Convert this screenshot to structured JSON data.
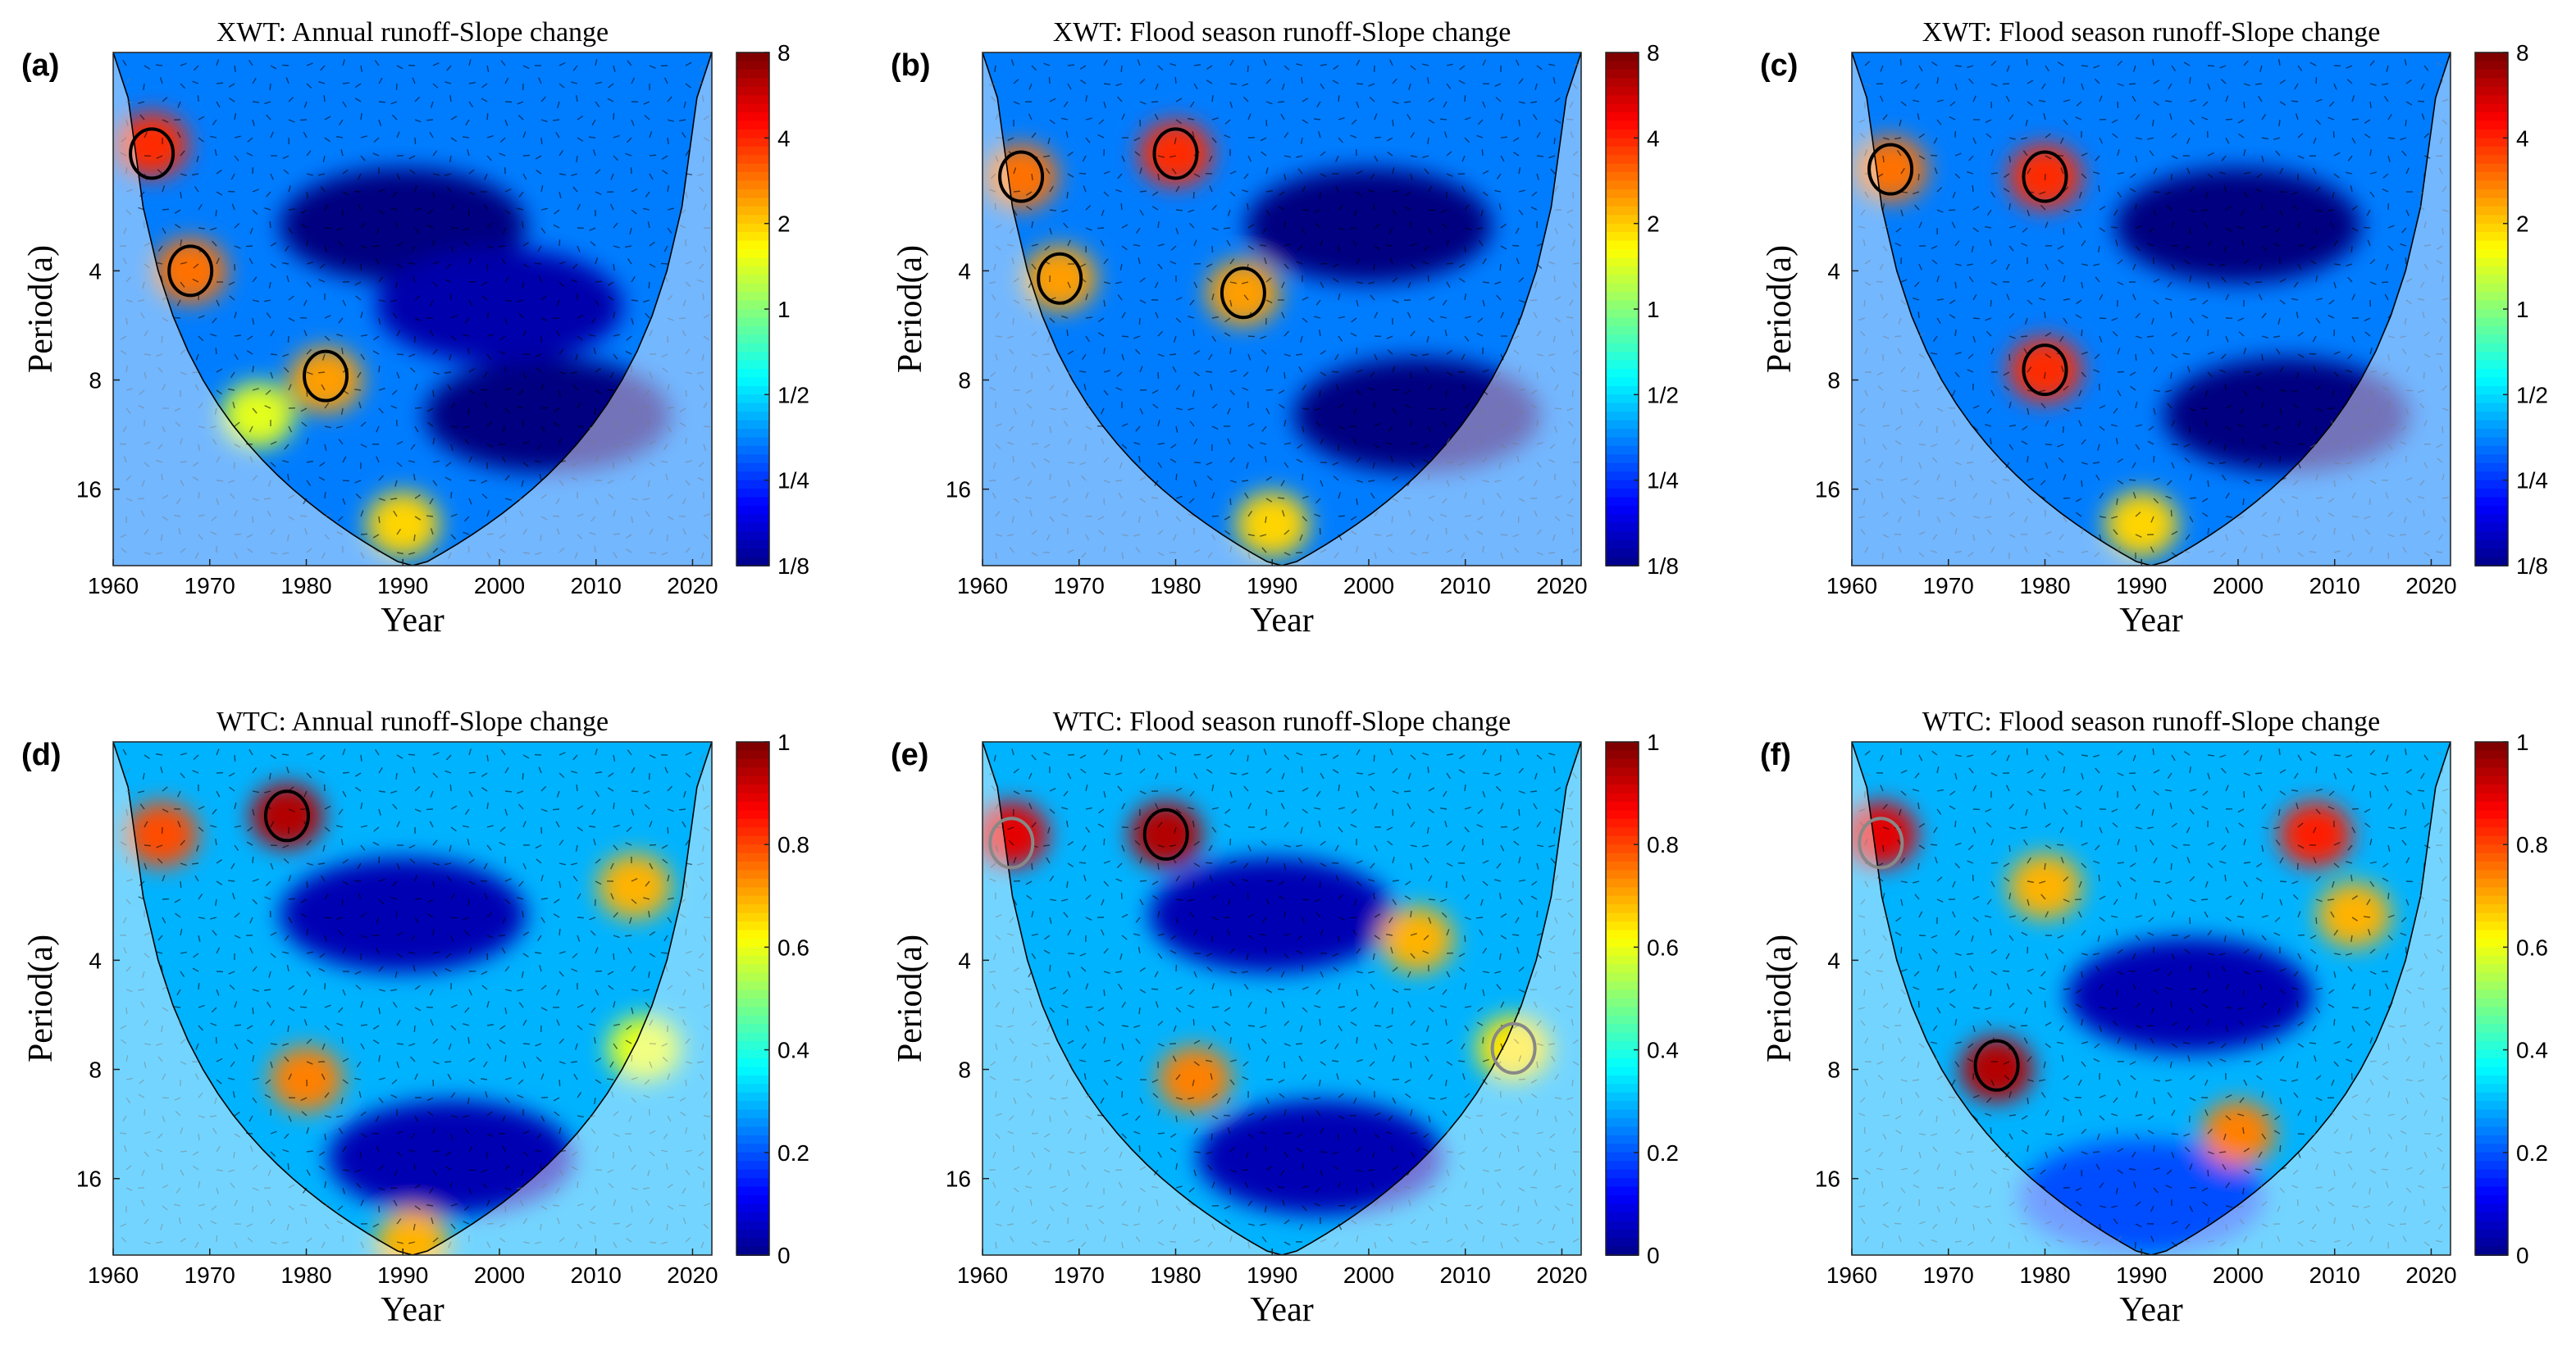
{
  "figure": {
    "row_labels": [
      "XWT",
      "WTC"
    ],
    "x_axis": {
      "label": "Year",
      "ticks": [
        1960,
        1970,
        1980,
        1990,
        2000,
        2010,
        2020
      ],
      "range": [
        1960,
        2022
      ]
    },
    "y_axis": {
      "label": "Period(a)",
      "ticks": [
        4,
        8,
        16
      ],
      "scale": "log2",
      "range": [
        1,
        26
      ],
      "inverted": true
    },
    "colors": {
      "low": "#00008f",
      "mid": "#7fff7f",
      "high": "#800000",
      "arrow": "#000000",
      "sig_contour": "#000000",
      "coi_shade": "#ffffff"
    }
  },
  "chart_data": [
    {
      "type": "heatmap",
      "panel_label": "(a)",
      "title": "XWT: Annual runoff-Slope change",
      "colorbar": {
        "ticks": [
          "1/8",
          "1/4",
          "1/2",
          "1",
          "2",
          "4",
          "8"
        ],
        "values": [
          0.125,
          0.25,
          0.5,
          1,
          2,
          4,
          8
        ],
        "scale": "log2"
      },
      "xlabel": "Year",
      "ylabel": "Period(a)",
      "hotspots": [
        {
          "year": 1964,
          "period": 1.8,
          "power": 4
        },
        {
          "year": 1968,
          "period": 4.0,
          "power": 3
        },
        {
          "year": 1982,
          "period": 8.0,
          "power": 2.5
        },
        {
          "year": 1990,
          "period": 20,
          "power": 2
        },
        {
          "year": 1975,
          "period": 10,
          "power": 1.5
        }
      ],
      "coldspots": [
        {
          "year": 1990,
          "period": 3,
          "power": 0.125
        },
        {
          "year": 2005,
          "period": 10,
          "power": 0.125
        },
        {
          "year": 2000,
          "period": 5,
          "power": 0.15
        }
      ],
      "significant_regions": [
        {
          "year": 1964,
          "period": 1.9,
          "inside_coi": true
        },
        {
          "year": 1968,
          "period": 4.0,
          "inside_coi": true
        },
        {
          "year": 1982,
          "period": 7.8,
          "inside_coi": true
        }
      ]
    },
    {
      "type": "heatmap",
      "panel_label": "(b)",
      "title": "XWT: Flood season runoff-Slope change",
      "colorbar": {
        "ticks": [
          "1/8",
          "1/4",
          "1/2",
          "1",
          "2",
          "4",
          "8"
        ],
        "values": [
          0.125,
          0.25,
          0.5,
          1,
          2,
          4,
          8
        ],
        "scale": "log2"
      },
      "xlabel": "Year",
      "ylabel": "Period(a)",
      "hotspots": [
        {
          "year": 1980,
          "period": 1.9,
          "power": 4
        },
        {
          "year": 1964,
          "period": 2.2,
          "power": 3
        },
        {
          "year": 1968,
          "period": 4.2,
          "power": 2.5
        },
        {
          "year": 1987,
          "period": 4.6,
          "power": 2.5
        },
        {
          "year": 1990,
          "period": 20,
          "power": 2
        }
      ],
      "coldspots": [
        {
          "year": 2000,
          "period": 3,
          "power": 0.125
        },
        {
          "year": 2005,
          "period": 10,
          "power": 0.125
        }
      ],
      "significant_regions": [
        {
          "year": 1980,
          "period": 1.9,
          "inside_coi": true
        },
        {
          "year": 1964,
          "period": 2.2,
          "inside_coi": true
        },
        {
          "year": 1968,
          "period": 4.2,
          "inside_coi": true
        },
        {
          "year": 1987,
          "period": 4.6,
          "inside_coi": true
        }
      ]
    },
    {
      "type": "heatmap",
      "panel_label": "(c)",
      "title": "XWT: Flood season runoff-Slope change",
      "colorbar": {
        "ticks": [
          "1/8",
          "1/4",
          "1/2",
          "1",
          "2",
          "4",
          "8"
        ],
        "values": [
          0.125,
          0.25,
          0.5,
          1,
          2,
          4,
          8
        ],
        "scale": "log2"
      },
      "xlabel": "Year",
      "ylabel": "Period(a)",
      "hotspots": [
        {
          "year": 1980,
          "period": 2.2,
          "power": 4
        },
        {
          "year": 1980,
          "period": 7.5,
          "power": 4
        },
        {
          "year": 1964,
          "period": 2.1,
          "power": 3
        },
        {
          "year": 1990,
          "period": 20,
          "power": 2
        }
      ],
      "coldspots": [
        {
          "year": 2000,
          "period": 3,
          "power": 0.125
        },
        {
          "year": 2005,
          "period": 10,
          "power": 0.125
        }
      ],
      "significant_regions": [
        {
          "year": 1980,
          "period": 2.2,
          "inside_coi": true
        },
        {
          "year": 1980,
          "period": 7.5,
          "inside_coi": true
        },
        {
          "year": 1964,
          "period": 2.1,
          "inside_coi": true
        }
      ]
    },
    {
      "type": "heatmap",
      "panel_label": "(d)",
      "title": "WTC: Annual runoff-Slope change",
      "colorbar": {
        "ticks": [
          "0",
          "0.2",
          "0.4",
          "0.6",
          "0.8",
          "1"
        ],
        "values": [
          0,
          0.2,
          0.4,
          0.6,
          0.8,
          1
        ],
        "scale": "linear"
      },
      "xlabel": "Year",
      "ylabel": "Period(a)",
      "hotspots": [
        {
          "year": 1978,
          "period": 1.6,
          "power": 0.95
        },
        {
          "year": 1965,
          "period": 1.8,
          "power": 0.8
        },
        {
          "year": 1980,
          "period": 8.5,
          "power": 0.75
        },
        {
          "year": 2014,
          "period": 2.5,
          "power": 0.7
        },
        {
          "year": 2015,
          "period": 7.0,
          "power": 0.6
        },
        {
          "year": 1991,
          "period": 24,
          "power": 0.7
        }
      ],
      "coldspots": [
        {
          "year": 1990,
          "period": 3,
          "power": 0.05
        },
        {
          "year": 1995,
          "period": 14,
          "power": 0.05
        }
      ],
      "significant_regions": [
        {
          "year": 1978,
          "period": 1.6,
          "inside_coi": true
        }
      ]
    },
    {
      "type": "heatmap",
      "panel_label": "(e)",
      "title": "WTC: Flood season runoff-Slope change",
      "colorbar": {
        "ticks": [
          "0",
          "0.2",
          "0.4",
          "0.6",
          "0.8",
          "1"
        ],
        "values": [
          0,
          0.2,
          0.4,
          0.6,
          0.8,
          1
        ],
        "scale": "linear"
      },
      "xlabel": "Year",
      "ylabel": "Period(a)",
      "hotspots": [
        {
          "year": 1979,
          "period": 1.8,
          "power": 0.95
        },
        {
          "year": 1963,
          "period": 1.8,
          "power": 0.9
        },
        {
          "year": 1982,
          "period": 8.5,
          "power": 0.75
        },
        {
          "year": 2005,
          "period": 3.5,
          "power": 0.7
        },
        {
          "year": 2015,
          "period": 7.0,
          "power": 0.65
        }
      ],
      "coldspots": [
        {
          "year": 1990,
          "period": 3,
          "power": 0.05
        },
        {
          "year": 1995,
          "period": 14,
          "power": 0.05
        }
      ],
      "significant_regions": [
        {
          "year": 1979,
          "period": 1.8,
          "inside_coi": true
        },
        {
          "year": 1963,
          "period": 1.9,
          "inside_coi": false
        },
        {
          "year": 2015,
          "period": 7.0,
          "inside_coi": false
        }
      ]
    },
    {
      "type": "heatmap",
      "panel_label": "(f)",
      "title": "WTC: Flood season runoff-Slope change",
      "colorbar": {
        "ticks": [
          "0",
          "0.2",
          "0.4",
          "0.6",
          "0.8",
          "1"
        ],
        "values": [
          0,
          0.2,
          0.4,
          0.6,
          0.8,
          1
        ],
        "scale": "linear"
      },
      "xlabel": "Year",
      "ylabel": "Period(a)",
      "hotspots": [
        {
          "year": 1975,
          "period": 8.0,
          "power": 0.95
        },
        {
          "year": 1963,
          "period": 1.8,
          "power": 0.9
        },
        {
          "year": 2008,
          "period": 1.8,
          "power": 0.85
        },
        {
          "year": 2000,
          "period": 12,
          "power": 0.75
        },
        {
          "year": 1980,
          "period": 2.5,
          "power": 0.7
        },
        {
          "year": 2012,
          "period": 3.0,
          "power": 0.7
        }
      ],
      "coldspots": [
        {
          "year": 1995,
          "period": 5,
          "power": 0.05
        },
        {
          "year": 1990,
          "period": 18,
          "power": 0.2
        }
      ],
      "significant_regions": [
        {
          "year": 1975,
          "period": 7.8,
          "inside_coi": true
        },
        {
          "year": 1963,
          "period": 1.9,
          "inside_coi": false
        }
      ]
    }
  ]
}
